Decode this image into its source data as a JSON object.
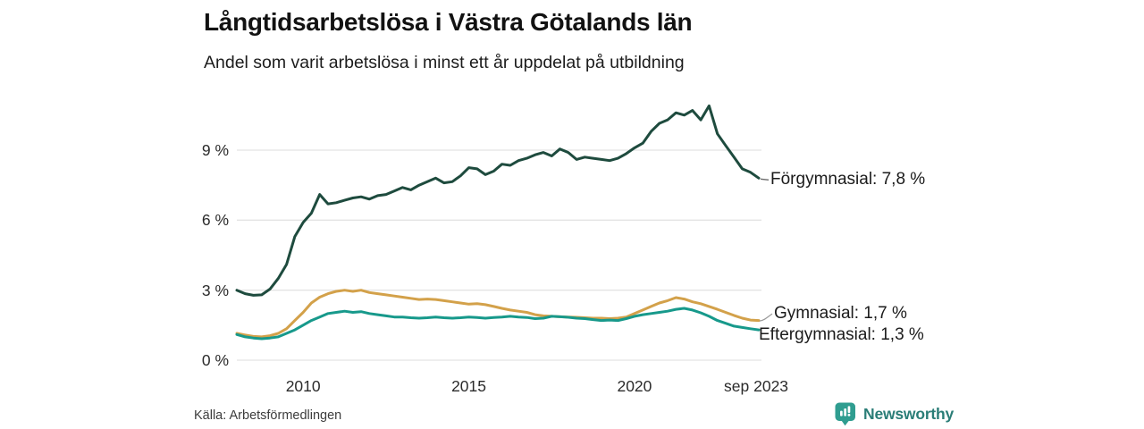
{
  "chart_data": {
    "type": "line",
    "title": "Långtidsarbetslösa i Västra Götalands län",
    "subtitle": "Andel som varit arbetslösa i minst ett år uppdelat på utbildning",
    "xlabel": "",
    "ylabel": "",
    "xlim": [
      2008,
      2023.75
    ],
    "ylim": [
      0,
      11.2
    ],
    "grid": "horizontal",
    "legend_position": "end-of-line-labels-right",
    "y_ticks": [
      {
        "value": 0,
        "label": "0 %"
      },
      {
        "value": 3,
        "label": "3 %"
      },
      {
        "value": 6,
        "label": "6 %"
      },
      {
        "value": 9,
        "label": "9 %"
      }
    ],
    "x_ticks": [
      {
        "value": 2010,
        "label": "2010"
      },
      {
        "value": 2015,
        "label": "2015"
      },
      {
        "value": 2020,
        "label": "2020"
      },
      {
        "value": 2023.67,
        "label": "sep 2023"
      }
    ],
    "x": [
      2008.0,
      2008.25,
      2008.5,
      2008.75,
      2009.0,
      2009.25,
      2009.5,
      2009.75,
      2010.0,
      2010.25,
      2010.5,
      2010.75,
      2011.0,
      2011.25,
      2011.5,
      2011.75,
      2012.0,
      2012.25,
      2012.5,
      2012.75,
      2013.0,
      2013.25,
      2013.5,
      2013.75,
      2014.0,
      2014.25,
      2014.5,
      2014.75,
      2015.0,
      2015.25,
      2015.5,
      2015.75,
      2016.0,
      2016.25,
      2016.5,
      2016.75,
      2017.0,
      2017.25,
      2017.5,
      2017.75,
      2018.0,
      2018.25,
      2018.5,
      2018.75,
      2019.0,
      2019.25,
      2019.5,
      2019.75,
      2020.0,
      2020.25,
      2020.5,
      2020.75,
      2021.0,
      2021.25,
      2021.5,
      2021.75,
      2022.0,
      2022.25,
      2022.5,
      2022.75,
      2023.0,
      2023.25,
      2023.5,
      2023.75
    ],
    "series": [
      {
        "name": "Förgymnasial",
        "end_label": "Förgymnasial: 7,8 %",
        "end_value_pct": 7.8,
        "color": "#1e4b3e",
        "values": [
          3.0,
          2.85,
          2.78,
          2.8,
          3.05,
          3.5,
          4.1,
          5.3,
          5.9,
          6.3,
          7.1,
          6.7,
          6.75,
          6.85,
          6.95,
          7.0,
          6.9,
          7.05,
          7.1,
          7.25,
          7.4,
          7.3,
          7.5,
          7.65,
          7.8,
          7.6,
          7.65,
          7.9,
          8.25,
          8.2,
          7.95,
          8.1,
          8.4,
          8.35,
          8.55,
          8.65,
          8.8,
          8.9,
          8.75,
          9.05,
          8.9,
          8.6,
          8.7,
          8.65,
          8.6,
          8.55,
          8.65,
          8.85,
          9.1,
          9.3,
          9.8,
          10.15,
          10.3,
          10.6,
          10.5,
          10.7,
          10.3,
          10.9,
          9.7,
          9.2,
          8.7,
          8.2,
          8.05,
          7.8
        ]
      },
      {
        "name": "Gymnasial",
        "end_label": "Gymnasial: 1,7 %",
        "end_value_pct": 1.7,
        "color": "#d3a14a",
        "values": [
          1.15,
          1.08,
          1.02,
          1.0,
          1.05,
          1.15,
          1.35,
          1.7,
          2.05,
          2.45,
          2.7,
          2.85,
          2.95,
          3.0,
          2.95,
          3.0,
          2.9,
          2.85,
          2.8,
          2.75,
          2.7,
          2.65,
          2.6,
          2.62,
          2.6,
          2.55,
          2.5,
          2.45,
          2.4,
          2.42,
          2.38,
          2.3,
          2.22,
          2.15,
          2.1,
          2.05,
          1.95,
          1.9,
          1.88,
          1.86,
          1.85,
          1.84,
          1.82,
          1.8,
          1.8,
          1.78,
          1.8,
          1.85,
          2.0,
          2.15,
          2.3,
          2.45,
          2.55,
          2.68,
          2.62,
          2.5,
          2.42,
          2.3,
          2.18,
          2.05,
          1.92,
          1.8,
          1.72,
          1.7
        ]
      },
      {
        "name": "Eftergymnasial",
        "end_label": "Eftergymnasial: 1,3 %",
        "end_value_pct": 1.3,
        "color": "#17998b",
        "values": [
          1.1,
          1.0,
          0.95,
          0.92,
          0.95,
          1.0,
          1.15,
          1.3,
          1.5,
          1.7,
          1.85,
          2.0,
          2.05,
          2.1,
          2.05,
          2.08,
          2.0,
          1.95,
          1.9,
          1.85,
          1.85,
          1.82,
          1.8,
          1.82,
          1.85,
          1.82,
          1.8,
          1.82,
          1.85,
          1.83,
          1.8,
          1.83,
          1.85,
          1.88,
          1.85,
          1.83,
          1.78,
          1.8,
          1.88,
          1.86,
          1.84,
          1.8,
          1.78,
          1.74,
          1.7,
          1.72,
          1.7,
          1.78,
          1.88,
          1.95,
          2.0,
          2.05,
          2.1,
          2.18,
          2.22,
          2.15,
          2.03,
          1.88,
          1.7,
          1.58,
          1.46,
          1.4,
          1.35,
          1.3
        ]
      }
    ]
  },
  "footer": {
    "source": "Källa: Arbetsförmedlingen",
    "brand": "Newsworthy"
  },
  "icons": {
    "brand_icon": "newsworthy-speech-bubble-bar-chart-icon"
  },
  "colors": {
    "background": "#ffffff",
    "gridline": "#e4e4e4",
    "title_text": "#121212",
    "tick_text": "#2b2b2b",
    "connector": "#6a6a6a",
    "brand_icon": "#2f9d90",
    "brand_text": "#2a7d77"
  }
}
